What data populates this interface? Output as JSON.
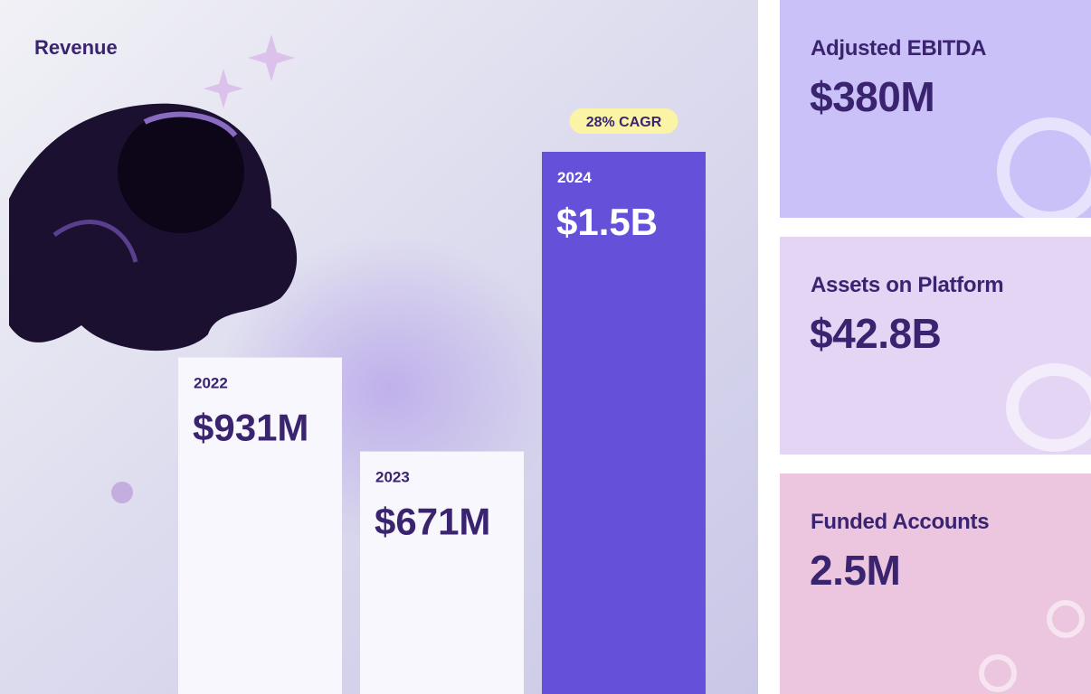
{
  "chart_data": {
    "type": "bar",
    "title": "Revenue",
    "categories": [
      "2022",
      "2023",
      "2024"
    ],
    "values": [
      931,
      671,
      1500
    ],
    "value_labels": [
      "$931M",
      "$671M",
      "$1.5B"
    ],
    "colors": [
      "#f8f7fd",
      "#f8f7fd",
      "#6550da"
    ],
    "annotation": "28% CAGR"
  },
  "kpis": [
    {
      "label": "Adjusted EBITDA",
      "value": "$380M",
      "color": "#cac1f8"
    },
    {
      "label": "Assets on Platform",
      "value": "$42.8B",
      "color": "#e4d5f5"
    },
    {
      "label": "Funded Accounts",
      "value": "2.5M",
      "color": "#ecc6df"
    }
  ]
}
